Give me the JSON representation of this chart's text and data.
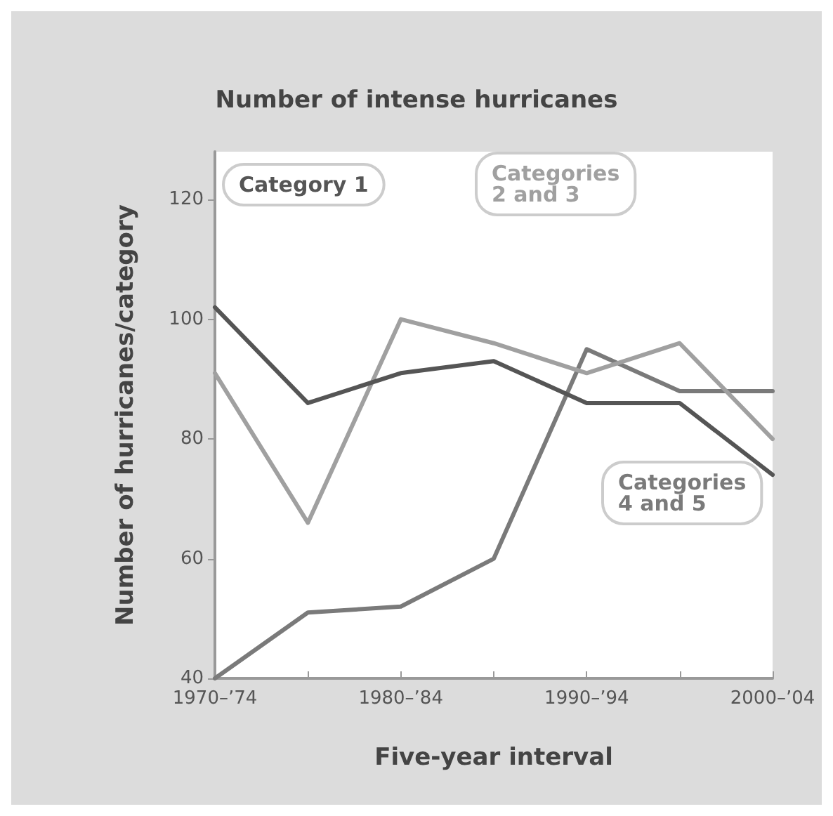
{
  "chart_data": {
    "type": "line",
    "title": "Number of intense hurricanes",
    "xlabel": "Five-year interval",
    "ylabel": "Number of hurricanes/category",
    "categories": [
      "1970–’74",
      null,
      "1980–’84",
      null,
      "1990–’94",
      null,
      "2000–’04"
    ],
    "ylim": [
      40,
      128
    ],
    "yticks": [
      40,
      60,
      80,
      100,
      120
    ],
    "grid": false,
    "legend": false,
    "marker": "none",
    "line_style": "solid",
    "series": [
      {
        "name": "Category 1",
        "color": "#555555",
        "values": [
          102,
          86,
          91,
          93,
          86,
          86,
          74
        ]
      },
      {
        "name": "Categories\n2 and 3",
        "color": "#a0a0a0",
        "values": [
          91,
          66,
          100,
          96,
          91,
          96,
          80
        ]
      },
      {
        "name": "Categories\n4 and 5",
        "color": "#7a7a7a",
        "values": [
          40,
          51,
          52,
          60,
          95,
          88,
          88
        ]
      }
    ]
  }
}
